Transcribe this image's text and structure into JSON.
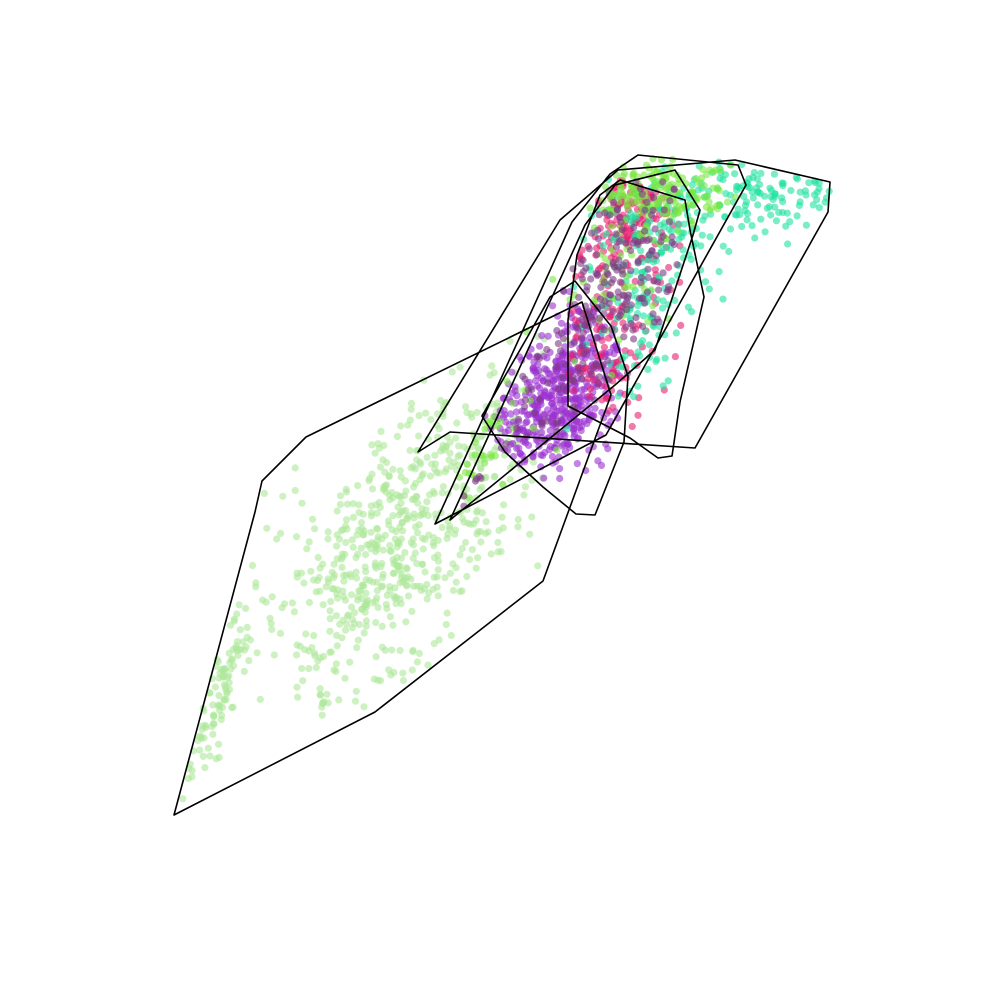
{
  "chart_data": {
    "type": "scatter",
    "title": "",
    "xlabel": "",
    "ylabel": "",
    "axes_visible": false,
    "grid": false,
    "legend": "none",
    "xlim": [
      0,
      100
    ],
    "ylim": [
      0,
      100
    ],
    "point_opacity": 0.6,
    "series": [
      {
        "color": "#ade79a",
        "clusters": [
          {
            "cx": 39,
            "cy": 44,
            "sx": 5.5,
            "sy": 7.5,
            "rho": 0.55,
            "n": 520
          },
          {
            "cx": 22,
            "cy": 31,
            "sx": 2.0,
            "sy": 6.0,
            "rho": 0.9,
            "n": 110
          },
          {
            "cx": 47,
            "cy": 54,
            "sx": 4.5,
            "sy": 5.0,
            "rho": 0.5,
            "n": 120
          }
        ],
        "hull": [
          [
            17.4,
            18.5
          ],
          [
            37.5,
            28.8
          ],
          [
            54.3,
            41.9
          ],
          [
            61.1,
            60.5
          ],
          [
            58.2,
            69.8
          ],
          [
            30.6,
            56.3
          ],
          [
            26.2,
            51.9
          ],
          [
            25.5,
            48.8
          ]
        ]
      },
      {
        "color": "#9b30d0",
        "clusters": [
          {
            "cx": 55.5,
            "cy": 60,
            "sx": 3.0,
            "sy": 4.0,
            "rho": 0.35,
            "n": 380
          },
          {
            "cx": 59,
            "cy": 65,
            "sx": 2.5,
            "sy": 4.0,
            "rho": 0.3,
            "n": 90
          },
          {
            "cx": 40,
            "cy": 44,
            "sx": 4.0,
            "sy": 5.0,
            "rho": 0.5,
            "n": 18
          }
        ],
        "hull": [
          [
            48.2,
            58.4
          ],
          [
            50.5,
            54.8
          ],
          [
            54.3,
            51.3
          ],
          [
            57.6,
            48.6
          ],
          [
            59.5,
            48.5
          ],
          [
            62.4,
            55.8
          ],
          [
            62.8,
            62.4
          ],
          [
            61.1,
            67.4
          ],
          [
            57.5,
            71.9
          ],
          [
            55.0,
            70.3
          ],
          [
            52.8,
            66.4
          ]
        ]
      },
      {
        "color": "#e8206f",
        "clusters": [
          {
            "cx": 63,
            "cy": 80,
            "sx": 3.0,
            "sy": 3.5,
            "rho": 0.3,
            "n": 150
          },
          {
            "cx": 61,
            "cy": 66,
            "sx": 3.5,
            "sy": 5.0,
            "rho": 0.3,
            "n": 110
          },
          {
            "cx": 50,
            "cy": 53,
            "sx": 2.5,
            "sy": 3.0,
            "rho": 0.3,
            "n": 25
          }
        ],
        "hull": [
          [
            56.8,
            59.4
          ],
          [
            63.0,
            56.2
          ],
          [
            65.8,
            54.2
          ],
          [
            67.2,
            54.4
          ],
          [
            68.0,
            59.8
          ],
          [
            70.4,
            70.3
          ],
          [
            69.0,
            77.0
          ],
          [
            68.5,
            80.0
          ],
          [
            62.0,
            82.0
          ],
          [
            60.0,
            80.5
          ],
          [
            57.7,
            74.5
          ],
          [
            56.8,
            68.0
          ]
        ]
      },
      {
        "color": "#20e3a0",
        "clusters": [
          {
            "cx": 70,
            "cy": 80,
            "sx": 6.0,
            "sy": 3.0,
            "rho": 0.3,
            "n": 160
          },
          {
            "cx": 65,
            "cy": 70,
            "sx": 3.0,
            "sy": 5.0,
            "rho": 0.4,
            "n": 120
          },
          {
            "cx": 80,
            "cy": 81,
            "sx": 3.5,
            "sy": 2.0,
            "rho": 0.0,
            "n": 40
          }
        ],
        "hull": [
          [
            41.8,
            54.8
          ],
          [
            45.0,
            56.8
          ],
          [
            69.5,
            55.2
          ],
          [
            82.8,
            78.8
          ],
          [
            83.0,
            81.8
          ],
          [
            73.5,
            84.0
          ],
          [
            61.8,
            83.0
          ],
          [
            56.0,
            78.0
          ]
        ]
      },
      {
        "color": "#79e840",
        "clusters": [
          {
            "cx": 66,
            "cy": 81,
            "sx": 3.5,
            "sy": 2.0,
            "rho": 0.2,
            "n": 160
          },
          {
            "cx": 62,
            "cy": 72,
            "sx": 3.0,
            "sy": 4.0,
            "rho": 0.3,
            "n": 50
          },
          {
            "cx": 48,
            "cy": 55,
            "sx": 3.0,
            "sy": 3.5,
            "rho": 0.3,
            "n": 30
          }
        ],
        "hull": [
          [
            43.5,
            47.6
          ],
          [
            60.6,
            56.5
          ],
          [
            74.6,
            81.5
          ],
          [
            73.8,
            83.5
          ],
          [
            63.8,
            84.5
          ],
          [
            61.0,
            82.6
          ],
          [
            57.2,
            77.8
          ]
        ]
      },
      {
        "color": "#7d3a86",
        "clusters": [
          {
            "cx": 62,
            "cy": 72,
            "sx": 3.5,
            "sy": 5.5,
            "rho": 0.3,
            "n": 170
          },
          {
            "cx": 56,
            "cy": 62,
            "sx": 3.0,
            "sy": 4.0,
            "rho": 0.3,
            "n": 50
          },
          {
            "cx": 40,
            "cy": 46,
            "sx": 4.0,
            "sy": 5.0,
            "rho": 0.4,
            "n": 10
          }
        ],
        "hull": [
          [
            45.0,
            48.0
          ],
          [
            61.5,
            61.5
          ],
          [
            65.5,
            65.0
          ],
          [
            69.3,
            76.5
          ],
          [
            70.0,
            79.0
          ],
          [
            67.5,
            83.0
          ],
          [
            61.5,
            81.5
          ],
          [
            58.5,
            77.5
          ]
        ]
      }
    ]
  }
}
